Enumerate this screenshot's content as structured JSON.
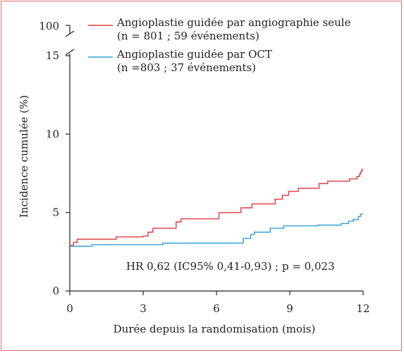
{
  "chart_data": {
    "type": "line",
    "step": true,
    "xlabel": "Durée depuis la randomisation (mois)",
    "ylabel": "Incidence cumulée (%)",
    "x_ticks": [
      "0",
      "3",
      "6",
      "9",
      "12"
    ],
    "y_ticks": [
      "0",
      "5",
      "10",
      "15"
    ],
    "y_break_label": "100",
    "xlim": [
      0,
      12
    ],
    "ylim": [
      0,
      15
    ],
    "axis_break": true,
    "grid": false,
    "annotation": "HR 0,62 (IC95% 0,41-0,93) ; p = 0,023",
    "series": [
      {
        "name": "Angioplastie guidée par angiographie seule",
        "note": "(n = 801 ; 59 événements)",
        "color": "#e03a3e",
        "x": [
          0,
          0.15,
          0.3,
          1.9,
          3.0,
          3.2,
          3.4,
          4.35,
          4.55,
          6.1,
          7.0,
          7.45,
          8.4,
          8.7,
          8.95,
          9.35,
          10.2,
          10.55,
          11.45,
          11.75,
          11.85,
          11.9,
          11.95,
          12.0
        ],
        "y": [
          2.9,
          3.1,
          3.3,
          3.45,
          3.5,
          3.75,
          4.0,
          4.4,
          4.6,
          5.0,
          5.3,
          5.55,
          5.85,
          6.1,
          6.35,
          6.55,
          6.85,
          7.0,
          7.15,
          7.3,
          7.45,
          7.6,
          7.75,
          7.75
        ]
      },
      {
        "name": "Angioplastie guidée par OCT",
        "note": "(n =803 ; 37 événements)",
        "color": "#2f9fd8",
        "x": [
          0,
          0.9,
          3.8,
          7.1,
          7.4,
          7.55,
          8.2,
          8.75,
          10.15,
          11.1,
          11.4,
          11.6,
          11.8,
          11.9,
          12.0
        ],
        "y": [
          2.85,
          2.95,
          3.05,
          3.35,
          3.6,
          3.75,
          4.0,
          4.15,
          4.2,
          4.3,
          4.45,
          4.55,
          4.75,
          4.9,
          4.9
        ]
      }
    ]
  }
}
